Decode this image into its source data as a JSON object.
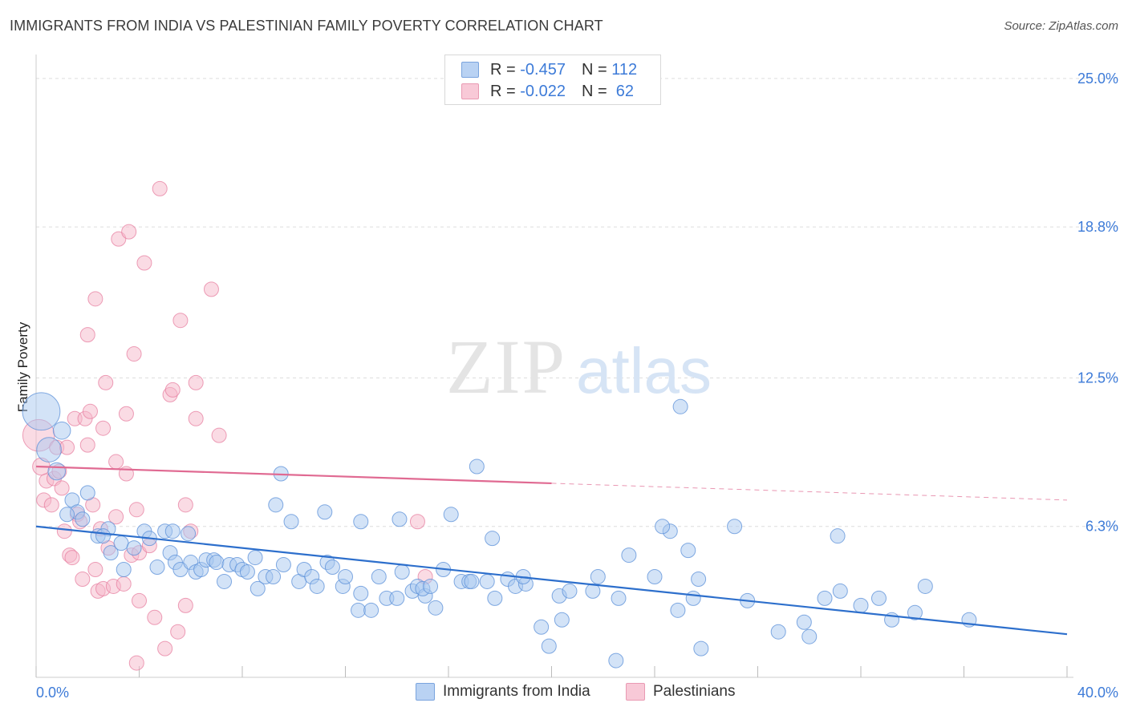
{
  "title": "IMMIGRANTS FROM INDIA VS PALESTINIAN FAMILY POVERTY CORRELATION CHART",
  "source": "Source: ZipAtlas.com",
  "watermark": {
    "zip": "ZIP",
    "atlas": "atlas"
  },
  "legend": {
    "rows": [
      {
        "r_label": "R =",
        "r_value": "-0.457",
        "n_label": "N =",
        "n_value": "112"
      },
      {
        "r_label": "R =",
        "r_value": "-0.022",
        "n_label": "N =",
        "n_value": "62"
      }
    ]
  },
  "colors": {
    "blue_fill": "#a8c8f0",
    "blue_stroke": "#5a8fd8",
    "blue_line": "#2d6fcc",
    "pink_fill": "#f5b8ca",
    "pink_stroke": "#e77fa0",
    "pink_line": "#e06a92",
    "tick_text": "#3d7bd8"
  },
  "chart_data": {
    "type": "scatter",
    "title": "IMMIGRANTS FROM INDIA VS PALESTINIAN FAMILY POVERTY CORRELATION CHART",
    "xlabel": "",
    "ylabel": "Family Poverty",
    "xlim": [
      0,
      40
    ],
    "ylim": [
      0,
      26
    ],
    "x_tick_labels": [
      "0.0%",
      "40.0%"
    ],
    "y_ticks": [
      6.3,
      12.5,
      18.8,
      25.0
    ],
    "y_tick_labels": [
      "6.3%",
      "12.5%",
      "18.8%",
      "25.0%"
    ],
    "series": [
      {
        "name": "Immigrants from India",
        "color": "#a8c8f0",
        "trend": {
          "x": [
            0,
            40
          ],
          "y": [
            6.3,
            1.8
          ],
          "style": "solid"
        },
        "points": [
          {
            "x": 0.2,
            "y": 11.1,
            "s": 2.6
          },
          {
            "x": 0.5,
            "y": 9.5,
            "s": 1.7
          },
          {
            "x": 1.0,
            "y": 10.3,
            "s": 1.2
          },
          {
            "x": 0.8,
            "y": 8.6,
            "s": 1.2
          },
          {
            "x": 1.4,
            "y": 7.4,
            "s": 1
          },
          {
            "x": 1.6,
            "y": 6.9,
            "s": 1
          },
          {
            "x": 2.0,
            "y": 7.7,
            "s": 1
          },
          {
            "x": 1.2,
            "y": 6.8,
            "s": 1
          },
          {
            "x": 1.8,
            "y": 6.6,
            "s": 1
          },
          {
            "x": 2.4,
            "y": 5.9,
            "s": 1
          },
          {
            "x": 2.8,
            "y": 6.2,
            "s": 1
          },
          {
            "x": 2.9,
            "y": 5.2,
            "s": 1
          },
          {
            "x": 3.3,
            "y": 5.6,
            "s": 1
          },
          {
            "x": 3.8,
            "y": 5.4,
            "s": 1
          },
          {
            "x": 4.2,
            "y": 6.1,
            "s": 1
          },
          {
            "x": 4.4,
            "y": 5.8,
            "s": 1
          },
          {
            "x": 5.0,
            "y": 6.1,
            "s": 1
          },
          {
            "x": 5.3,
            "y": 6.1,
            "s": 1
          },
          {
            "x": 2.6,
            "y": 5.9,
            "s": 1
          },
          {
            "x": 3.4,
            "y": 4.5,
            "s": 1
          },
          {
            "x": 4.7,
            "y": 4.6,
            "s": 1
          },
          {
            "x": 5.2,
            "y": 5.2,
            "s": 1
          },
          {
            "x": 5.4,
            "y": 4.8,
            "s": 1
          },
          {
            "x": 5.6,
            "y": 4.5,
            "s": 1
          },
          {
            "x": 6.0,
            "y": 4.8,
            "s": 1
          },
          {
            "x": 5.9,
            "y": 6.0,
            "s": 1
          },
          {
            "x": 6.2,
            "y": 4.4,
            "s": 1
          },
          {
            "x": 6.4,
            "y": 4.5,
            "s": 1
          },
          {
            "x": 6.6,
            "y": 4.9,
            "s": 1
          },
          {
            "x": 6.9,
            "y": 4.9,
            "s": 1
          },
          {
            "x": 7.0,
            "y": 4.8,
            "s": 1
          },
          {
            "x": 7.3,
            "y": 4.0,
            "s": 1
          },
          {
            "x": 7.5,
            "y": 4.7,
            "s": 1
          },
          {
            "x": 7.8,
            "y": 4.7,
            "s": 1
          },
          {
            "x": 8.0,
            "y": 4.5,
            "s": 1
          },
          {
            "x": 8.2,
            "y": 4.4,
            "s": 1
          },
          {
            "x": 8.6,
            "y": 3.7,
            "s": 1
          },
          {
            "x": 8.5,
            "y": 5.0,
            "s": 1
          },
          {
            "x": 8.9,
            "y": 4.2,
            "s": 1
          },
          {
            "x": 9.2,
            "y": 4.2,
            "s": 1
          },
          {
            "x": 9.6,
            "y": 4.7,
            "s": 1
          },
          {
            "x": 9.3,
            "y": 7.2,
            "s": 1
          },
          {
            "x": 9.5,
            "y": 8.5,
            "s": 1
          },
          {
            "x": 9.9,
            "y": 6.5,
            "s": 1
          },
          {
            "x": 10.2,
            "y": 4.0,
            "s": 1
          },
          {
            "x": 10.4,
            "y": 4.5,
            "s": 1
          },
          {
            "x": 10.7,
            "y": 4.2,
            "s": 1
          },
          {
            "x": 10.9,
            "y": 3.8,
            "s": 1
          },
          {
            "x": 11.2,
            "y": 6.9,
            "s": 1
          },
          {
            "x": 11.3,
            "y": 4.8,
            "s": 1
          },
          {
            "x": 11.5,
            "y": 4.6,
            "s": 1
          },
          {
            "x": 11.9,
            "y": 3.8,
            "s": 1
          },
          {
            "x": 12.0,
            "y": 4.2,
            "s": 1
          },
          {
            "x": 12.6,
            "y": 3.5,
            "s": 1
          },
          {
            "x": 12.5,
            "y": 2.8,
            "s": 1
          },
          {
            "x": 12.6,
            "y": 6.5,
            "s": 1
          },
          {
            "x": 13.0,
            "y": 2.8,
            "s": 1
          },
          {
            "x": 13.3,
            "y": 4.2,
            "s": 1
          },
          {
            "x": 13.6,
            "y": 3.3,
            "s": 1
          },
          {
            "x": 14.0,
            "y": 3.3,
            "s": 1
          },
          {
            "x": 14.1,
            "y": 6.6,
            "s": 1
          },
          {
            "x": 14.2,
            "y": 4.4,
            "s": 1
          },
          {
            "x": 14.6,
            "y": 3.6,
            "s": 1
          },
          {
            "x": 14.8,
            "y": 3.8,
            "s": 1
          },
          {
            "x": 15.1,
            "y": 3.4,
            "s": 1
          },
          {
            "x": 15.5,
            "y": 2.9,
            "s": 1
          },
          {
            "x": 15.0,
            "y": 3.7,
            "s": 1
          },
          {
            "x": 15.3,
            "y": 3.8,
            "s": 1
          },
          {
            "x": 15.8,
            "y": 4.5,
            "s": 1
          },
          {
            "x": 16.1,
            "y": 6.8,
            "s": 1
          },
          {
            "x": 16.5,
            "y": 4.0,
            "s": 1
          },
          {
            "x": 16.8,
            "y": 4.0,
            "s": 1
          },
          {
            "x": 16.9,
            "y": 4.0,
            "s": 1
          },
          {
            "x": 17.1,
            "y": 8.8,
            "s": 1
          },
          {
            "x": 17.8,
            "y": 3.3,
            "s": 1
          },
          {
            "x": 17.5,
            "y": 4.0,
            "s": 1
          },
          {
            "x": 17.7,
            "y": 5.8,
            "s": 1
          },
          {
            "x": 18.3,
            "y": 4.1,
            "s": 1
          },
          {
            "x": 18.6,
            "y": 3.8,
            "s": 1
          },
          {
            "x": 19.0,
            "y": 3.9,
            "s": 1
          },
          {
            "x": 18.9,
            "y": 4.2,
            "s": 1
          },
          {
            "x": 19.6,
            "y": 2.1,
            "s": 1
          },
          {
            "x": 19.9,
            "y": 1.3,
            "s": 1
          },
          {
            "x": 20.3,
            "y": 3.4,
            "s": 1
          },
          {
            "x": 20.4,
            "y": 2.4,
            "s": 1
          },
          {
            "x": 20.7,
            "y": 3.6,
            "s": 1
          },
          {
            "x": 21.6,
            "y": 3.6,
            "s": 1
          },
          {
            "x": 21.8,
            "y": 4.2,
            "s": 1
          },
          {
            "x": 22.5,
            "y": 0.7,
            "s": 1
          },
          {
            "x": 22.6,
            "y": 3.3,
            "s": 1
          },
          {
            "x": 23.0,
            "y": 5.1,
            "s": 1
          },
          {
            "x": 24.0,
            "y": 4.2,
            "s": 1
          },
          {
            "x": 24.6,
            "y": 6.1,
            "s": 1
          },
          {
            "x": 24.9,
            "y": 2.8,
            "s": 1
          },
          {
            "x": 24.3,
            "y": 6.3,
            "s": 1
          },
          {
            "x": 25.3,
            "y": 5.3,
            "s": 1
          },
          {
            "x": 25.7,
            "y": 4.1,
            "s": 1
          },
          {
            "x": 25.8,
            "y": 1.2,
            "s": 1
          },
          {
            "x": 25.5,
            "y": 3.3,
            "s": 1
          },
          {
            "x": 27.1,
            "y": 6.3,
            "s": 1
          },
          {
            "x": 27.6,
            "y": 3.2,
            "s": 1
          },
          {
            "x": 28.8,
            "y": 1.9,
            "s": 1
          },
          {
            "x": 29.8,
            "y": 2.3,
            "s": 1
          },
          {
            "x": 30.0,
            "y": 1.7,
            "s": 1
          },
          {
            "x": 30.6,
            "y": 3.3,
            "s": 1
          },
          {
            "x": 31.2,
            "y": 3.6,
            "s": 1
          },
          {
            "x": 32.0,
            "y": 3.0,
            "s": 1
          },
          {
            "x": 32.7,
            "y": 3.3,
            "s": 1
          },
          {
            "x": 33.2,
            "y": 2.4,
            "s": 1
          },
          {
            "x": 34.5,
            "y": 3.8,
            "s": 1
          },
          {
            "x": 34.1,
            "y": 2.7,
            "s": 1
          },
          {
            "x": 36.2,
            "y": 2.4,
            "s": 1
          },
          {
            "x": 25.0,
            "y": 11.3,
            "s": 1
          },
          {
            "x": 31.1,
            "y": 5.9,
            "s": 1
          }
        ]
      },
      {
        "name": "Palestinians",
        "color": "#f5b8ca",
        "trend": {
          "x": [
            0,
            20
          ],
          "y": [
            8.8,
            8.1
          ],
          "style": "solid",
          "extended_to_x": 40,
          "extended_to_y": 7.4,
          "extended_style": "dashed"
        },
        "points": [
          {
            "x": 0.1,
            "y": 10.1,
            "s": 2.2
          },
          {
            "x": 0.2,
            "y": 8.8,
            "s": 1.2
          },
          {
            "x": 0.3,
            "y": 7.4,
            "s": 1
          },
          {
            "x": 0.4,
            "y": 8.2,
            "s": 1
          },
          {
            "x": 0.6,
            "y": 7.2,
            "s": 1
          },
          {
            "x": 0.7,
            "y": 8.3,
            "s": 1
          },
          {
            "x": 0.8,
            "y": 9.6,
            "s": 1
          },
          {
            "x": 0.9,
            "y": 8.6,
            "s": 1
          },
          {
            "x": 1.0,
            "y": 7.9,
            "s": 1
          },
          {
            "x": 1.1,
            "y": 6.1,
            "s": 1
          },
          {
            "x": 1.2,
            "y": 9.6,
            "s": 1
          },
          {
            "x": 1.3,
            "y": 5.1,
            "s": 1
          },
          {
            "x": 1.5,
            "y": 10.8,
            "s": 1
          },
          {
            "x": 1.6,
            "y": 6.8,
            "s": 1
          },
          {
            "x": 1.7,
            "y": 6.5,
            "s": 1
          },
          {
            "x": 1.8,
            "y": 4.1,
            "s": 1
          },
          {
            "x": 1.9,
            "y": 10.8,
            "s": 1
          },
          {
            "x": 2.0,
            "y": 9.7,
            "s": 1
          },
          {
            "x": 2.1,
            "y": 11.1,
            "s": 1
          },
          {
            "x": 2.2,
            "y": 7.2,
            "s": 1
          },
          {
            "x": 2.3,
            "y": 4.5,
            "s": 1
          },
          {
            "x": 2.3,
            "y": 15.8,
            "s": 1
          },
          {
            "x": 2.0,
            "y": 14.3,
            "s": 1
          },
          {
            "x": 2.4,
            "y": 3.6,
            "s": 1
          },
          {
            "x": 2.5,
            "y": 6.2,
            "s": 1
          },
          {
            "x": 2.6,
            "y": 3.7,
            "s": 1
          },
          {
            "x": 2.6,
            "y": 10.4,
            "s": 1
          },
          {
            "x": 2.7,
            "y": 12.3,
            "s": 1
          },
          {
            "x": 2.8,
            "y": 5.4,
            "s": 1
          },
          {
            "x": 3.0,
            "y": 3.8,
            "s": 1
          },
          {
            "x": 3.1,
            "y": 6.7,
            "s": 1
          },
          {
            "x": 3.1,
            "y": 9.0,
            "s": 1
          },
          {
            "x": 3.4,
            "y": 3.9,
            "s": 1
          },
          {
            "x": 3.5,
            "y": 11.0,
            "s": 1
          },
          {
            "x": 3.5,
            "y": 8.5,
            "s": 1
          },
          {
            "x": 3.2,
            "y": 18.3,
            "s": 1
          },
          {
            "x": 3.6,
            "y": 18.6,
            "s": 1
          },
          {
            "x": 3.7,
            "y": 5.1,
            "s": 1
          },
          {
            "x": 3.8,
            "y": 13.5,
            "s": 1
          },
          {
            "x": 3.9,
            "y": 7.0,
            "s": 1
          },
          {
            "x": 3.9,
            "y": 0.6,
            "s": 1
          },
          {
            "x": 4.0,
            "y": 5.2,
            "s": 1
          },
          {
            "x": 4.0,
            "y": 3.2,
            "s": 1
          },
          {
            "x": 4.2,
            "y": 17.3,
            "s": 1
          },
          {
            "x": 4.4,
            "y": 5.5,
            "s": 1
          },
          {
            "x": 4.6,
            "y": 2.5,
            "s": 1
          },
          {
            "x": 4.8,
            "y": 20.4,
            "s": 1
          },
          {
            "x": 5.0,
            "y": 1.2,
            "s": 1
          },
          {
            "x": 5.2,
            "y": 11.8,
            "s": 1
          },
          {
            "x": 5.3,
            "y": 12.0,
            "s": 1
          },
          {
            "x": 5.5,
            "y": 1.9,
            "s": 1
          },
          {
            "x": 5.6,
            "y": 14.9,
            "s": 1
          },
          {
            "x": 5.8,
            "y": 7.2,
            "s": 1
          },
          {
            "x": 6.0,
            "y": 6.1,
            "s": 1
          },
          {
            "x": 6.2,
            "y": 10.8,
            "s": 1
          },
          {
            "x": 6.2,
            "y": 12.3,
            "s": 1
          },
          {
            "x": 6.8,
            "y": 16.2,
            "s": 1
          },
          {
            "x": 7.1,
            "y": 10.1,
            "s": 1
          },
          {
            "x": 5.8,
            "y": 3.0,
            "s": 1
          },
          {
            "x": 15.1,
            "y": 4.2,
            "s": 1
          },
          {
            "x": 14.8,
            "y": 6.5,
            "s": 1
          },
          {
            "x": 1.4,
            "y": 5.0,
            "s": 1
          }
        ]
      }
    ]
  }
}
